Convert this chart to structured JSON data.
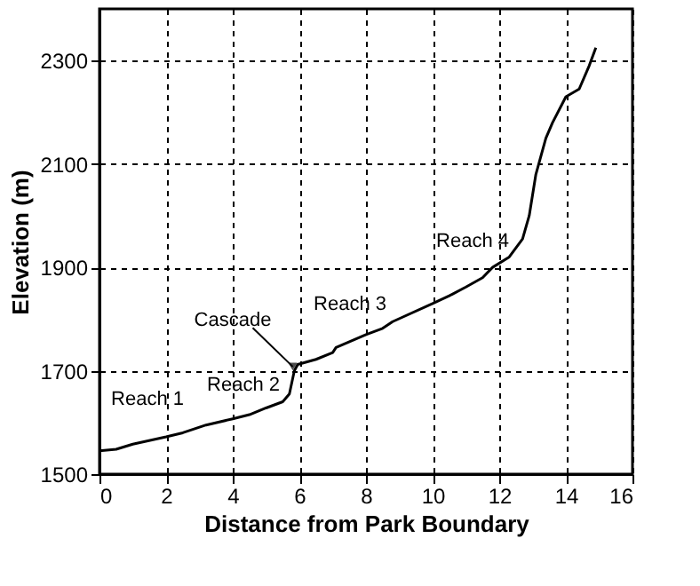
{
  "chart_data": {
    "type": "line",
    "xlabel": "Distance from Park Boundary",
    "ylabel": "Elevation (m)",
    "x": [
      0,
      0.5,
      1,
      2,
      2.5,
      3.2,
      4,
      4.5,
      5,
      5.5,
      5.7,
      5.85,
      5.95,
      6.5,
      7,
      7.1,
      8,
      8.5,
      8.8,
      10,
      10.5,
      11,
      11.5,
      11.8,
      12.3,
      12.7,
      12.9,
      13.1,
      13.4,
      13.6,
      14,
      14.4,
      14.7,
      14.9
    ],
    "series": [
      {
        "color": "#000000",
        "values": [
          1545,
          1548,
          1558,
          1572,
          1580,
          1595,
          1607,
          1615,
          1628,
          1640,
          1655,
          1700,
          1712,
          1722,
          1735,
          1745,
          1770,
          1782,
          1795,
          1830,
          1845,
          1862,
          1880,
          1900,
          1920,
          1955,
          2000,
          2080,
          2150,
          2180,
          2230,
          2245,
          2290,
          2325
        ]
      }
    ],
    "xlim": [
      0,
      16
    ],
    "xticks": [
      0,
      2,
      4,
      6,
      8,
      10,
      12,
      14,
      16
    ],
    "ylim": [
      1500,
      2400
    ],
    "yticks": [
      1500,
      1700,
      1900,
      2100,
      2300
    ],
    "grid": true,
    "marker": "none",
    "line_style": "solid",
    "annotations": [
      "Reach 1",
      "Reach 2",
      "Reach 3",
      "Reach 4",
      {
        "text": "Cascade",
        "x": 5.85,
        "y": 1705
      }
    ]
  }
}
